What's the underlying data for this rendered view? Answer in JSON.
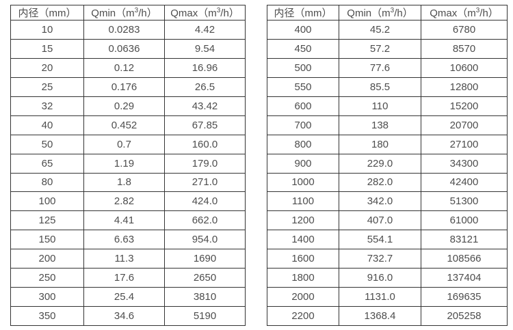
{
  "page": {
    "background": "#ffffff",
    "border_color": "#333333",
    "text_color": "#4d4d4d"
  },
  "tables": [
    {
      "name": "flow-spec-table-small-diameters",
      "headers": [
        {
          "text": "内径（mm）"
        },
        {
          "pre": "Qmin（m",
          "sup": "3",
          "post": "/h）"
        },
        {
          "pre": "Qmax（m",
          "sup": "3",
          "post": "/h）"
        }
      ],
      "rows": [
        [
          "10",
          "0.0283",
          "4.42"
        ],
        [
          "15",
          "0.0636",
          "9.54"
        ],
        [
          "20",
          "0.12",
          "16.96"
        ],
        [
          "25",
          "0.176",
          "26.5"
        ],
        [
          "32",
          "0.29",
          "43.42"
        ],
        [
          "40",
          "0.452",
          "67.85"
        ],
        [
          "50",
          "0.7",
          "160.0"
        ],
        [
          "65",
          "1.19",
          "179.0"
        ],
        [
          "80",
          "1.8",
          "271.0"
        ],
        [
          "100",
          "2.82",
          "424.0"
        ],
        [
          "125",
          "4.41",
          "662.0"
        ],
        [
          "150",
          "6.63",
          "954.0"
        ],
        [
          "200",
          "11.3",
          "1690"
        ],
        [
          "250",
          "17.6",
          "2650"
        ],
        [
          "300",
          "25.4",
          "3810"
        ],
        [
          "350",
          "34.6",
          "5190"
        ]
      ]
    },
    {
      "name": "flow-spec-table-large-diameters",
      "headers": [
        {
          "text": "内径（mm）"
        },
        {
          "pre": "Qmin（m",
          "sup": "3",
          "post": "/h）"
        },
        {
          "pre": "Qmax（m",
          "sup": "3",
          "post": "/h）"
        }
      ],
      "rows": [
        [
          "400",
          "45.2",
          "6780"
        ],
        [
          "450",
          "57.2",
          "8570"
        ],
        [
          "500",
          "77.6",
          "10600"
        ],
        [
          "550",
          "85.5",
          "12800"
        ],
        [
          "600",
          "110",
          "15200"
        ],
        [
          "700",
          "138",
          "20700"
        ],
        [
          "800",
          "180",
          "27100"
        ],
        [
          "900",
          "229.0",
          "34300"
        ],
        [
          "1000",
          "282.0",
          "42400"
        ],
        [
          "1100",
          "342.0",
          "51300"
        ],
        [
          "1200",
          "407.0",
          "61000"
        ],
        [
          "1400",
          "554.1",
          "83121"
        ],
        [
          "1600",
          "732.7",
          "108566"
        ],
        [
          "1800",
          "916.0",
          "137404"
        ],
        [
          "2000",
          "1131.0",
          "169635"
        ],
        [
          "2200",
          "1368.4",
          "205258"
        ]
      ]
    }
  ]
}
